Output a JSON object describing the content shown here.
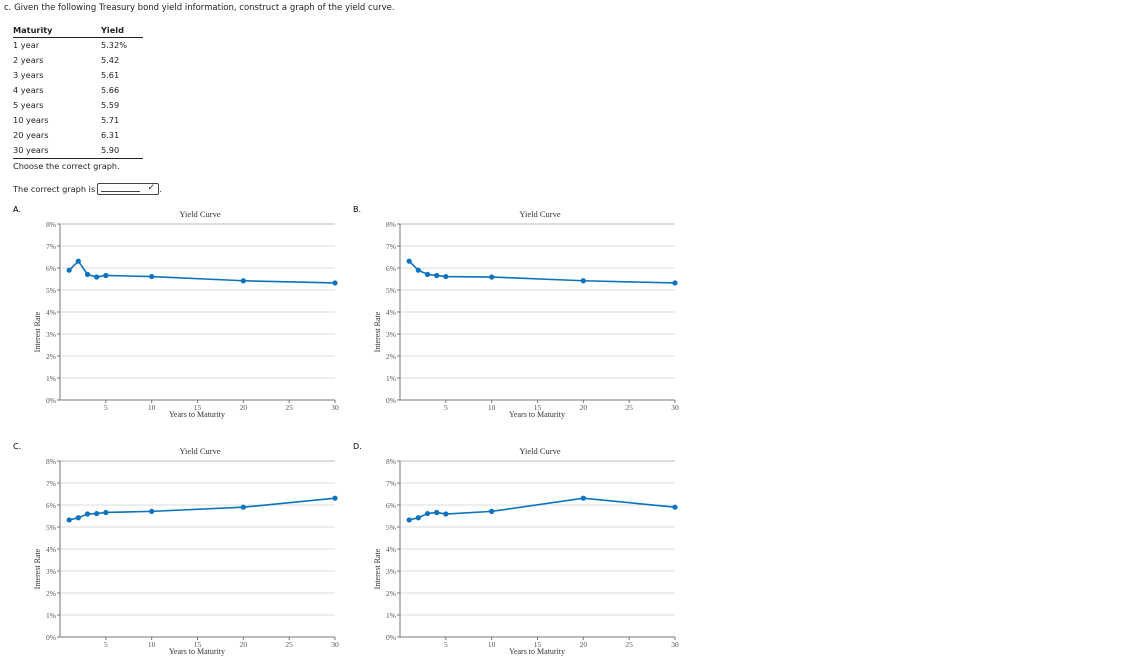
{
  "question": "c. Given the following Treasury bond yield information, construct a graph of the yield curve.",
  "table": {
    "headers": [
      "Maturity",
      "Yield"
    ],
    "rows": [
      [
        "1 year",
        "5.32%"
      ],
      [
        "2 years",
        "5.42"
      ],
      [
        "3 years",
        "5.61"
      ],
      [
        "4 years",
        "5.66"
      ],
      [
        "5 years",
        "5.59"
      ],
      [
        "10 years",
        "5.71"
      ],
      [
        "20 years",
        "6.31"
      ],
      [
        "30 years",
        "5.90"
      ]
    ]
  },
  "instruction": "Choose the correct graph.",
  "answer": {
    "prefix": "The correct graph is",
    "selected": "",
    "suffix": "."
  },
  "chart_data": [
    {
      "option": "A.",
      "type": "line",
      "title": "Yield Curve",
      "xlabel": "Years to Maturity",
      "ylabel": "Interest Rate",
      "x": [
        1,
        2,
        3,
        4,
        5,
        10,
        20,
        30
      ],
      "y": [
        5.9,
        6.31,
        5.71,
        5.59,
        5.66,
        5.61,
        5.42,
        5.32
      ],
      "xlim": [
        0,
        30
      ],
      "ylim": [
        0,
        8
      ],
      "xticks": [
        "5",
        "10",
        "15",
        "20",
        "25",
        "30"
      ],
      "yticks": [
        "0%",
        "1%",
        "2%",
        "3%",
        "4%",
        "5%",
        "6%",
        "7%",
        "8%"
      ],
      "grid": true,
      "color": "#0a72be"
    },
    {
      "option": "B.",
      "type": "line",
      "title": "Yield Curve",
      "xlabel": "Years to Maturity",
      "ylabel": "Interest Rate",
      "x": [
        1,
        2,
        3,
        4,
        5,
        10,
        20,
        30
      ],
      "y": [
        6.31,
        5.9,
        5.71,
        5.66,
        5.61,
        5.59,
        5.42,
        5.32
      ],
      "xlim": [
        0,
        30
      ],
      "ylim": [
        0,
        8
      ],
      "xticks": [
        "5",
        "10",
        "15",
        "20",
        "25",
        "30"
      ],
      "yticks": [
        "0%",
        "1%",
        "2%",
        "3%",
        "4%",
        "5%",
        "6%",
        "7%",
        "8%"
      ],
      "grid": true,
      "color": "#0a72be"
    },
    {
      "option": "C.",
      "type": "line",
      "title": "Yield Curve",
      "xlabel": "Years to Maturity",
      "ylabel": "Interest Rate",
      "x": [
        1,
        2,
        3,
        4,
        5,
        10,
        20,
        30
      ],
      "y": [
        5.32,
        5.42,
        5.59,
        5.61,
        5.66,
        5.71,
        5.9,
        6.31
      ],
      "xlim": [
        0,
        30
      ],
      "ylim": [
        0,
        8
      ],
      "xticks": [
        "5",
        "10",
        "15",
        "20",
        "25",
        "30"
      ],
      "yticks": [
        "0%",
        "1%",
        "2%",
        "3%",
        "4%",
        "5%",
        "6%",
        "7%",
        "8%"
      ],
      "grid": true,
      "color": "#0a72be"
    },
    {
      "option": "D.",
      "type": "line",
      "title": "Yield Curve",
      "xlabel": "Years to Maturity",
      "ylabel": "Interest Rate",
      "x": [
        1,
        2,
        3,
        4,
        5,
        10,
        20,
        30
      ],
      "y": [
        5.32,
        5.42,
        5.61,
        5.66,
        5.59,
        5.71,
        6.31,
        5.9
      ],
      "xlim": [
        0,
        30
      ],
      "ylim": [
        0,
        8
      ],
      "xticks": [
        "5",
        "10",
        "15",
        "20",
        "25",
        "30"
      ],
      "yticks": [
        "0%",
        "1%",
        "2%",
        "3%",
        "4%",
        "5%",
        "6%",
        "7%",
        "8%"
      ],
      "grid": true,
      "color": "#0a72be"
    }
  ]
}
